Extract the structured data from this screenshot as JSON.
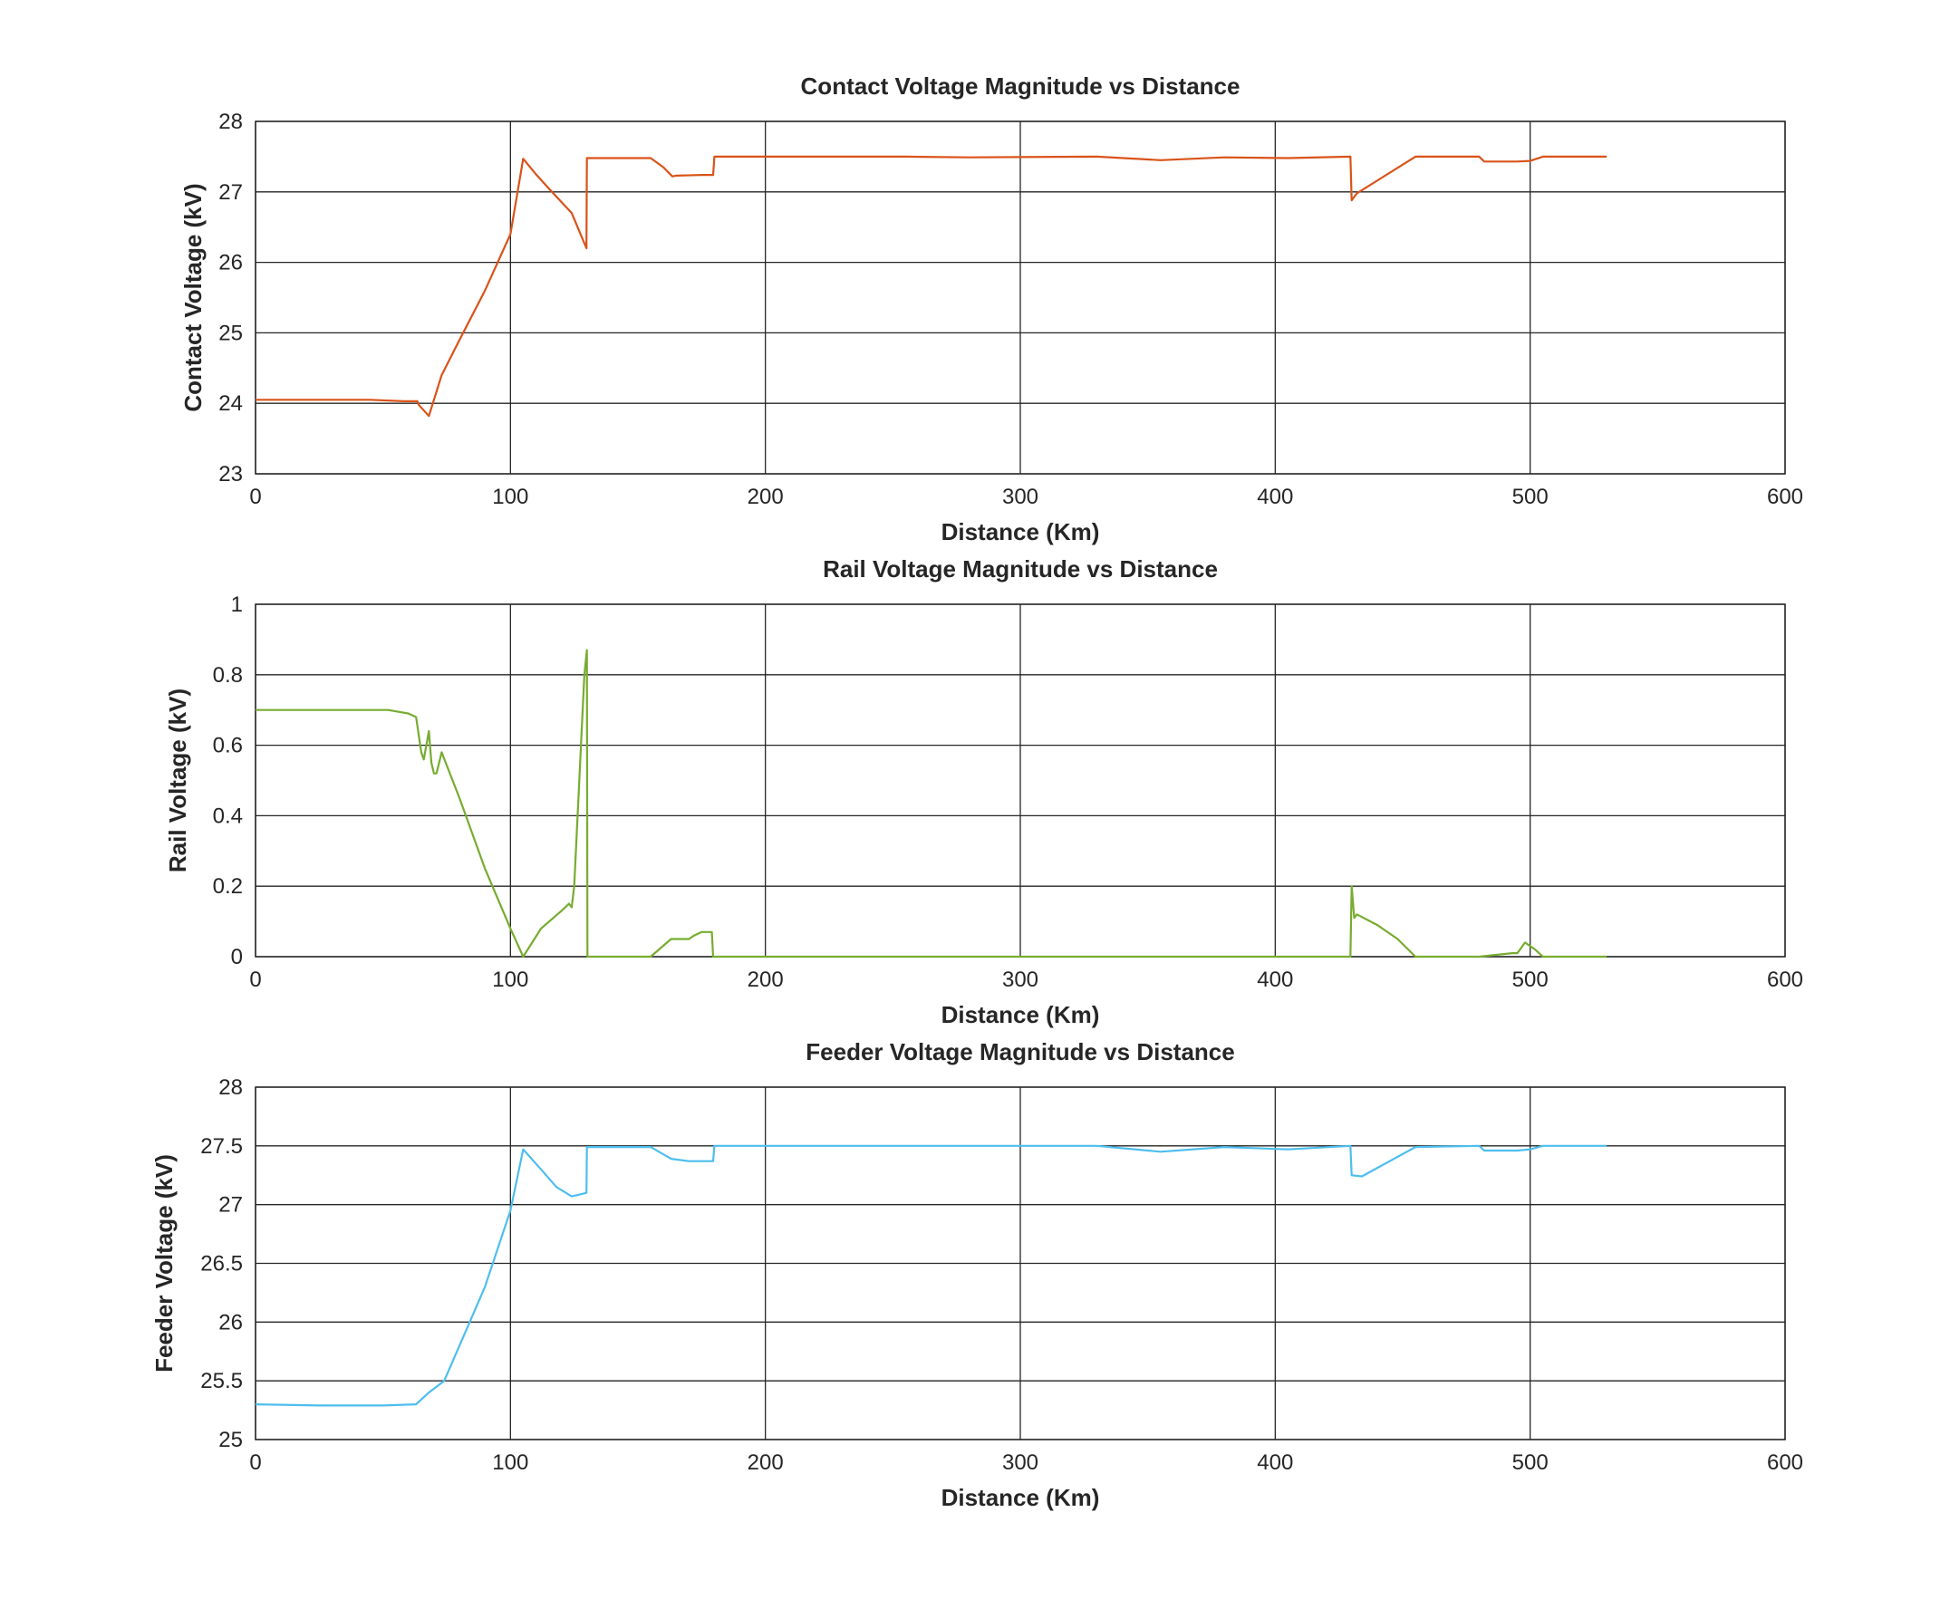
{
  "chart_data": [
    {
      "type": "line",
      "title": "Contact Voltage Magnitude vs Distance",
      "xlabel": "Distance (Km)",
      "ylabel": "Contact Voltage (kV)",
      "xlim": [
        0,
        600
      ],
      "ylim": [
        23,
        28
      ],
      "xticks": [
        0,
        100,
        200,
        300,
        400,
        500,
        600
      ],
      "yticks": [
        23,
        24,
        25,
        26,
        27,
        28
      ],
      "xtick_labels": [
        "0",
        "100",
        "200",
        "300",
        "400",
        "500",
        "600"
      ],
      "ytick_labels": [
        "23",
        "24",
        "25",
        "26",
        "27",
        "28"
      ],
      "grid": true,
      "color": "#D95319",
      "series": [
        {
          "x": [
            0,
            45,
            58,
            63.5,
            64,
            68,
            73,
            80,
            90,
            100,
            105,
            110,
            115,
            124,
            129.8,
            130,
            155,
            160,
            163.5,
            165,
            175,
            179.5,
            180,
            255,
            280,
            330,
            355,
            380,
            405,
            429.5,
            430,
            432,
            455,
            480,
            482,
            495,
            500,
            505,
            530
          ],
          "y": [
            24.05,
            24.05,
            24.03,
            24.03,
            23.98,
            23.82,
            24.4,
            24.9,
            25.6,
            26.4,
            27.47,
            27.25,
            27.05,
            26.7,
            26.2,
            27.48,
            27.48,
            27.35,
            27.22,
            27.23,
            27.24,
            27.24,
            27.5,
            27.5,
            27.49,
            27.5,
            27.45,
            27.49,
            27.48,
            27.5,
            26.88,
            26.98,
            27.5,
            27.5,
            27.43,
            27.43,
            27.44,
            27.5,
            27.5
          ]
        }
      ]
    },
    {
      "type": "line",
      "title": "Rail Voltage Magnitude vs Distance",
      "xlabel": "Distance (Km)",
      "ylabel": "Rail Voltage (kV)",
      "xlim": [
        0,
        600
      ],
      "ylim": [
        0,
        1
      ],
      "xticks": [
        0,
        100,
        200,
        300,
        400,
        500,
        600
      ],
      "yticks": [
        0,
        0.2,
        0.4,
        0.6,
        0.8,
        1
      ],
      "xtick_labels": [
        "0",
        "100",
        "200",
        "300",
        "400",
        "500",
        "600"
      ],
      "ytick_labels": [
        "0",
        "0.2",
        "0.4",
        "0.6",
        "0.8",
        "1"
      ],
      "grid": true,
      "color": "#77AC30",
      "series": [
        {
          "x": [
            0,
            52,
            60,
            63,
            65,
            66,
            67,
            68,
            69,
            70,
            71,
            72,
            73,
            80,
            90,
            100,
            105,
            112,
            120,
            123,
            124,
            125,
            127,
            129,
            130,
            130.2,
            155,
            163,
            165,
            170,
            172,
            175,
            179,
            179.5,
            200,
            400,
            429.5,
            430,
            431,
            432,
            440,
            448,
            455,
            480,
            493,
            495,
            498,
            502,
            505,
            530
          ],
          "y": [
            0.7,
            0.7,
            0.69,
            0.68,
            0.58,
            0.56,
            0.6,
            0.64,
            0.55,
            0.52,
            0.52,
            0.55,
            0.58,
            0.45,
            0.25,
            0.08,
            0.0,
            0.08,
            0.13,
            0.15,
            0.14,
            0.2,
            0.5,
            0.8,
            0.87,
            0.0,
            0.0,
            0.05,
            0.05,
            0.05,
            0.06,
            0.07,
            0.07,
            0.0,
            0.0,
            0.0,
            0.0,
            0.2,
            0.11,
            0.12,
            0.09,
            0.05,
            0.0,
            0.0,
            0.01,
            0.01,
            0.04,
            0.02,
            0.0,
            0.0
          ]
        }
      ]
    },
    {
      "type": "line",
      "title": "Feeder Voltage Magnitude vs Distance",
      "xlabel": "Distance (Km)",
      "ylabel": "Feeder Voltage (kV)",
      "xlim": [
        0,
        600
      ],
      "ylim": [
        25,
        28
      ],
      "xticks": [
        0,
        100,
        200,
        300,
        400,
        500,
        600
      ],
      "yticks": [
        25,
        25.5,
        26,
        26.5,
        27,
        27.5,
        28
      ],
      "xtick_labels": [
        "0",
        "100",
        "200",
        "300",
        "400",
        "500",
        "600"
      ],
      "ytick_labels": [
        "25",
        "25.5",
        "26",
        "26.5",
        "27",
        "27.5",
        "28"
      ],
      "grid": true,
      "color": "#4DBEEE",
      "series": [
        {
          "x": [
            0,
            25,
            50,
            63,
            68,
            74,
            80,
            90,
            100,
            105,
            112,
            118,
            124,
            129.8,
            130,
            155,
            163,
            170,
            179.5,
            180,
            330,
            355,
            380,
            405,
            429.5,
            430,
            434,
            455,
            480,
            482,
            495,
            500,
            505,
            530
          ],
          "y": [
            25.3,
            25.29,
            25.29,
            25.3,
            25.4,
            25.5,
            25.8,
            26.3,
            26.95,
            27.47,
            27.3,
            27.15,
            27.07,
            27.1,
            27.49,
            27.49,
            27.39,
            27.37,
            27.37,
            27.5,
            27.5,
            27.45,
            27.49,
            27.47,
            27.5,
            27.25,
            27.24,
            27.49,
            27.5,
            27.46,
            27.46,
            27.47,
            27.5,
            27.5
          ]
        }
      ]
    }
  ]
}
